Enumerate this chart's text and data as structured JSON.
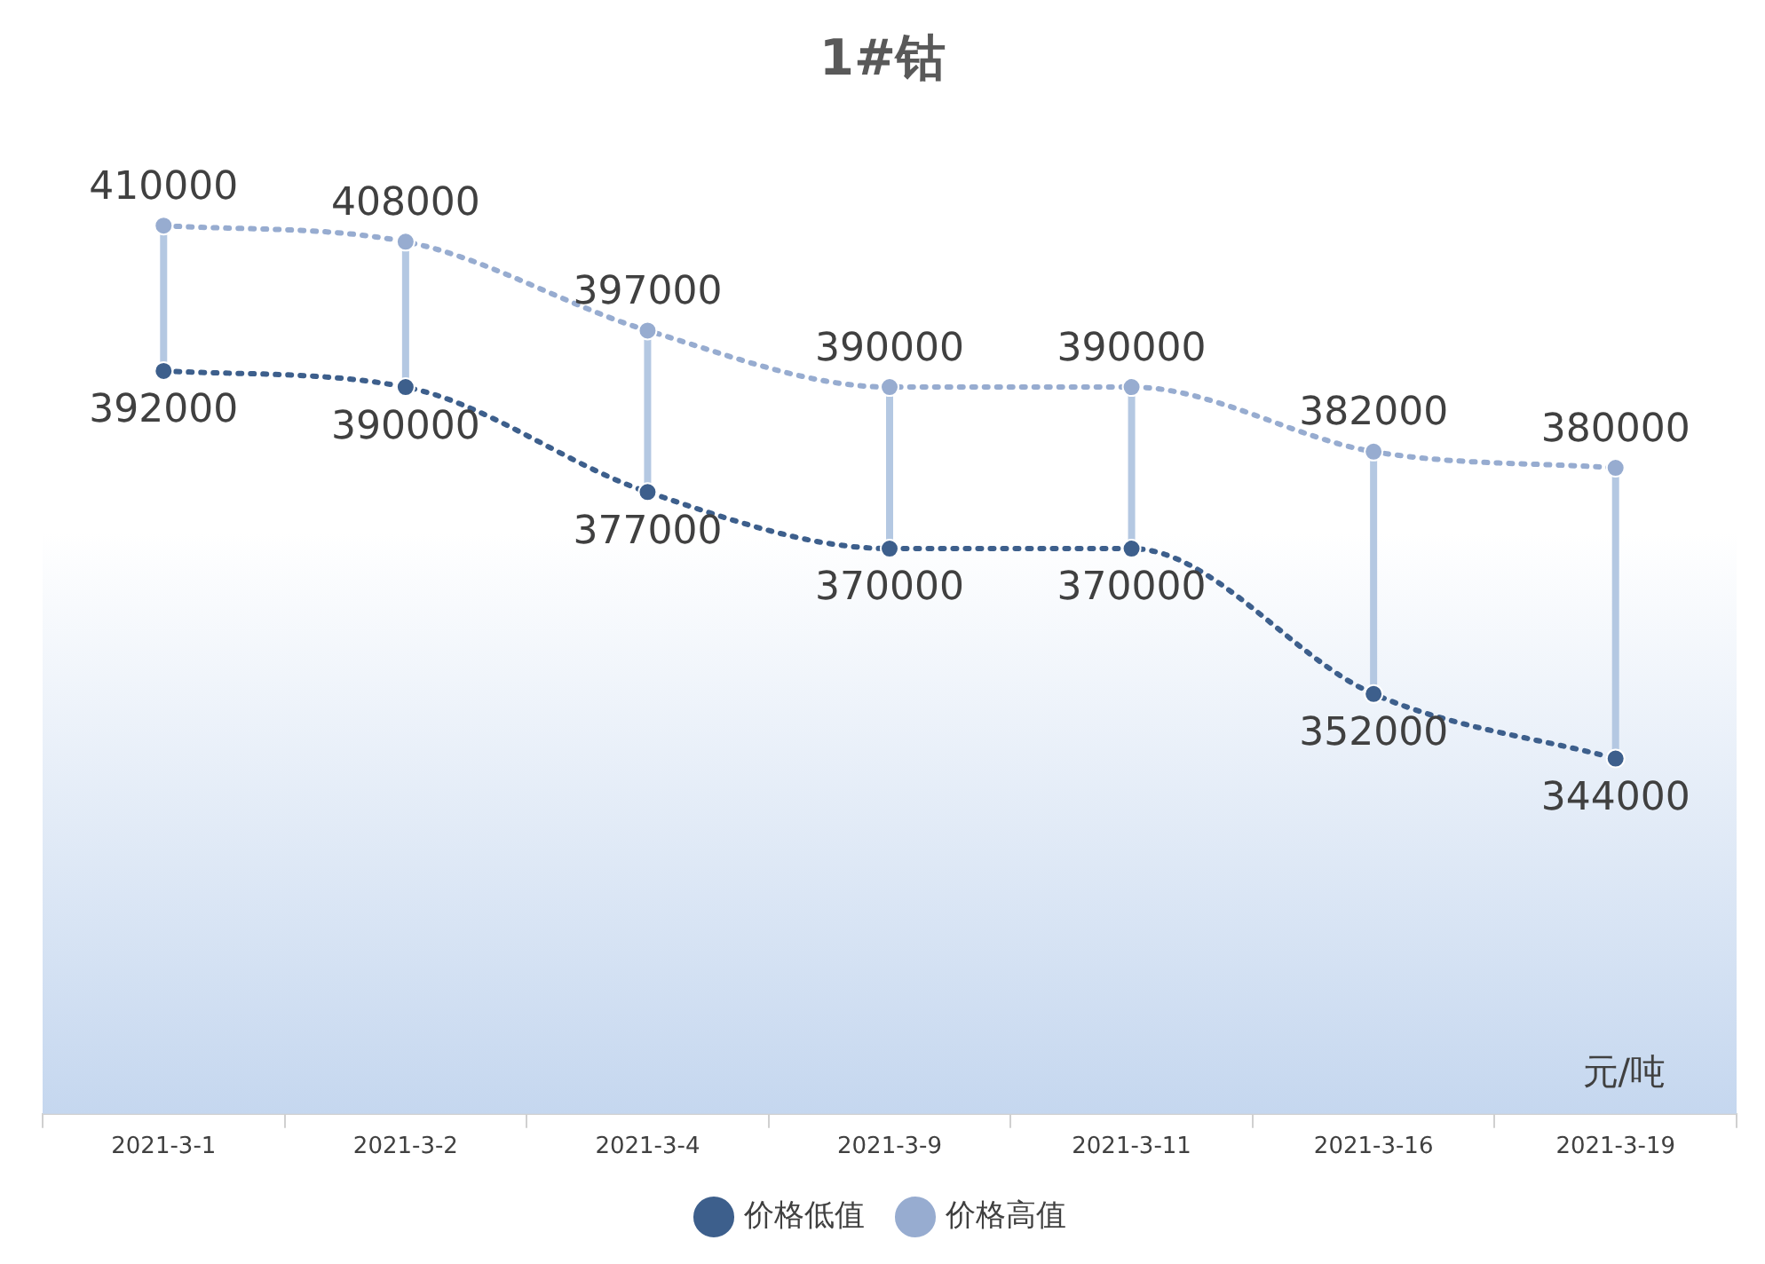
{
  "chart_data": {
    "type": "line",
    "title": "1#钴",
    "categories": [
      "2021-3-1",
      "2021-3-2",
      "2021-3-4",
      "2021-3-9",
      "2021-3-11",
      "2021-3-16",
      "2021-3-19"
    ],
    "series": [
      {
        "name": "价格低值",
        "color": "#3d5f8c",
        "values": [
          392000,
          390000,
          377000,
          370000,
          370000,
          352000,
          344000
        ]
      },
      {
        "name": "价格高值",
        "color": "#97acd0",
        "values": [
          410000,
          408000,
          397000,
          390000,
          390000,
          382000,
          380000
        ]
      }
    ],
    "ylim": [
      300000,
      420000
    ],
    "tick_labels": "x",
    "data_labels": true,
    "annotations": [
      "元/吨"
    ],
    "legend": "bottom",
    "marker": "circle",
    "line_style": "dotted",
    "grid": false
  }
}
